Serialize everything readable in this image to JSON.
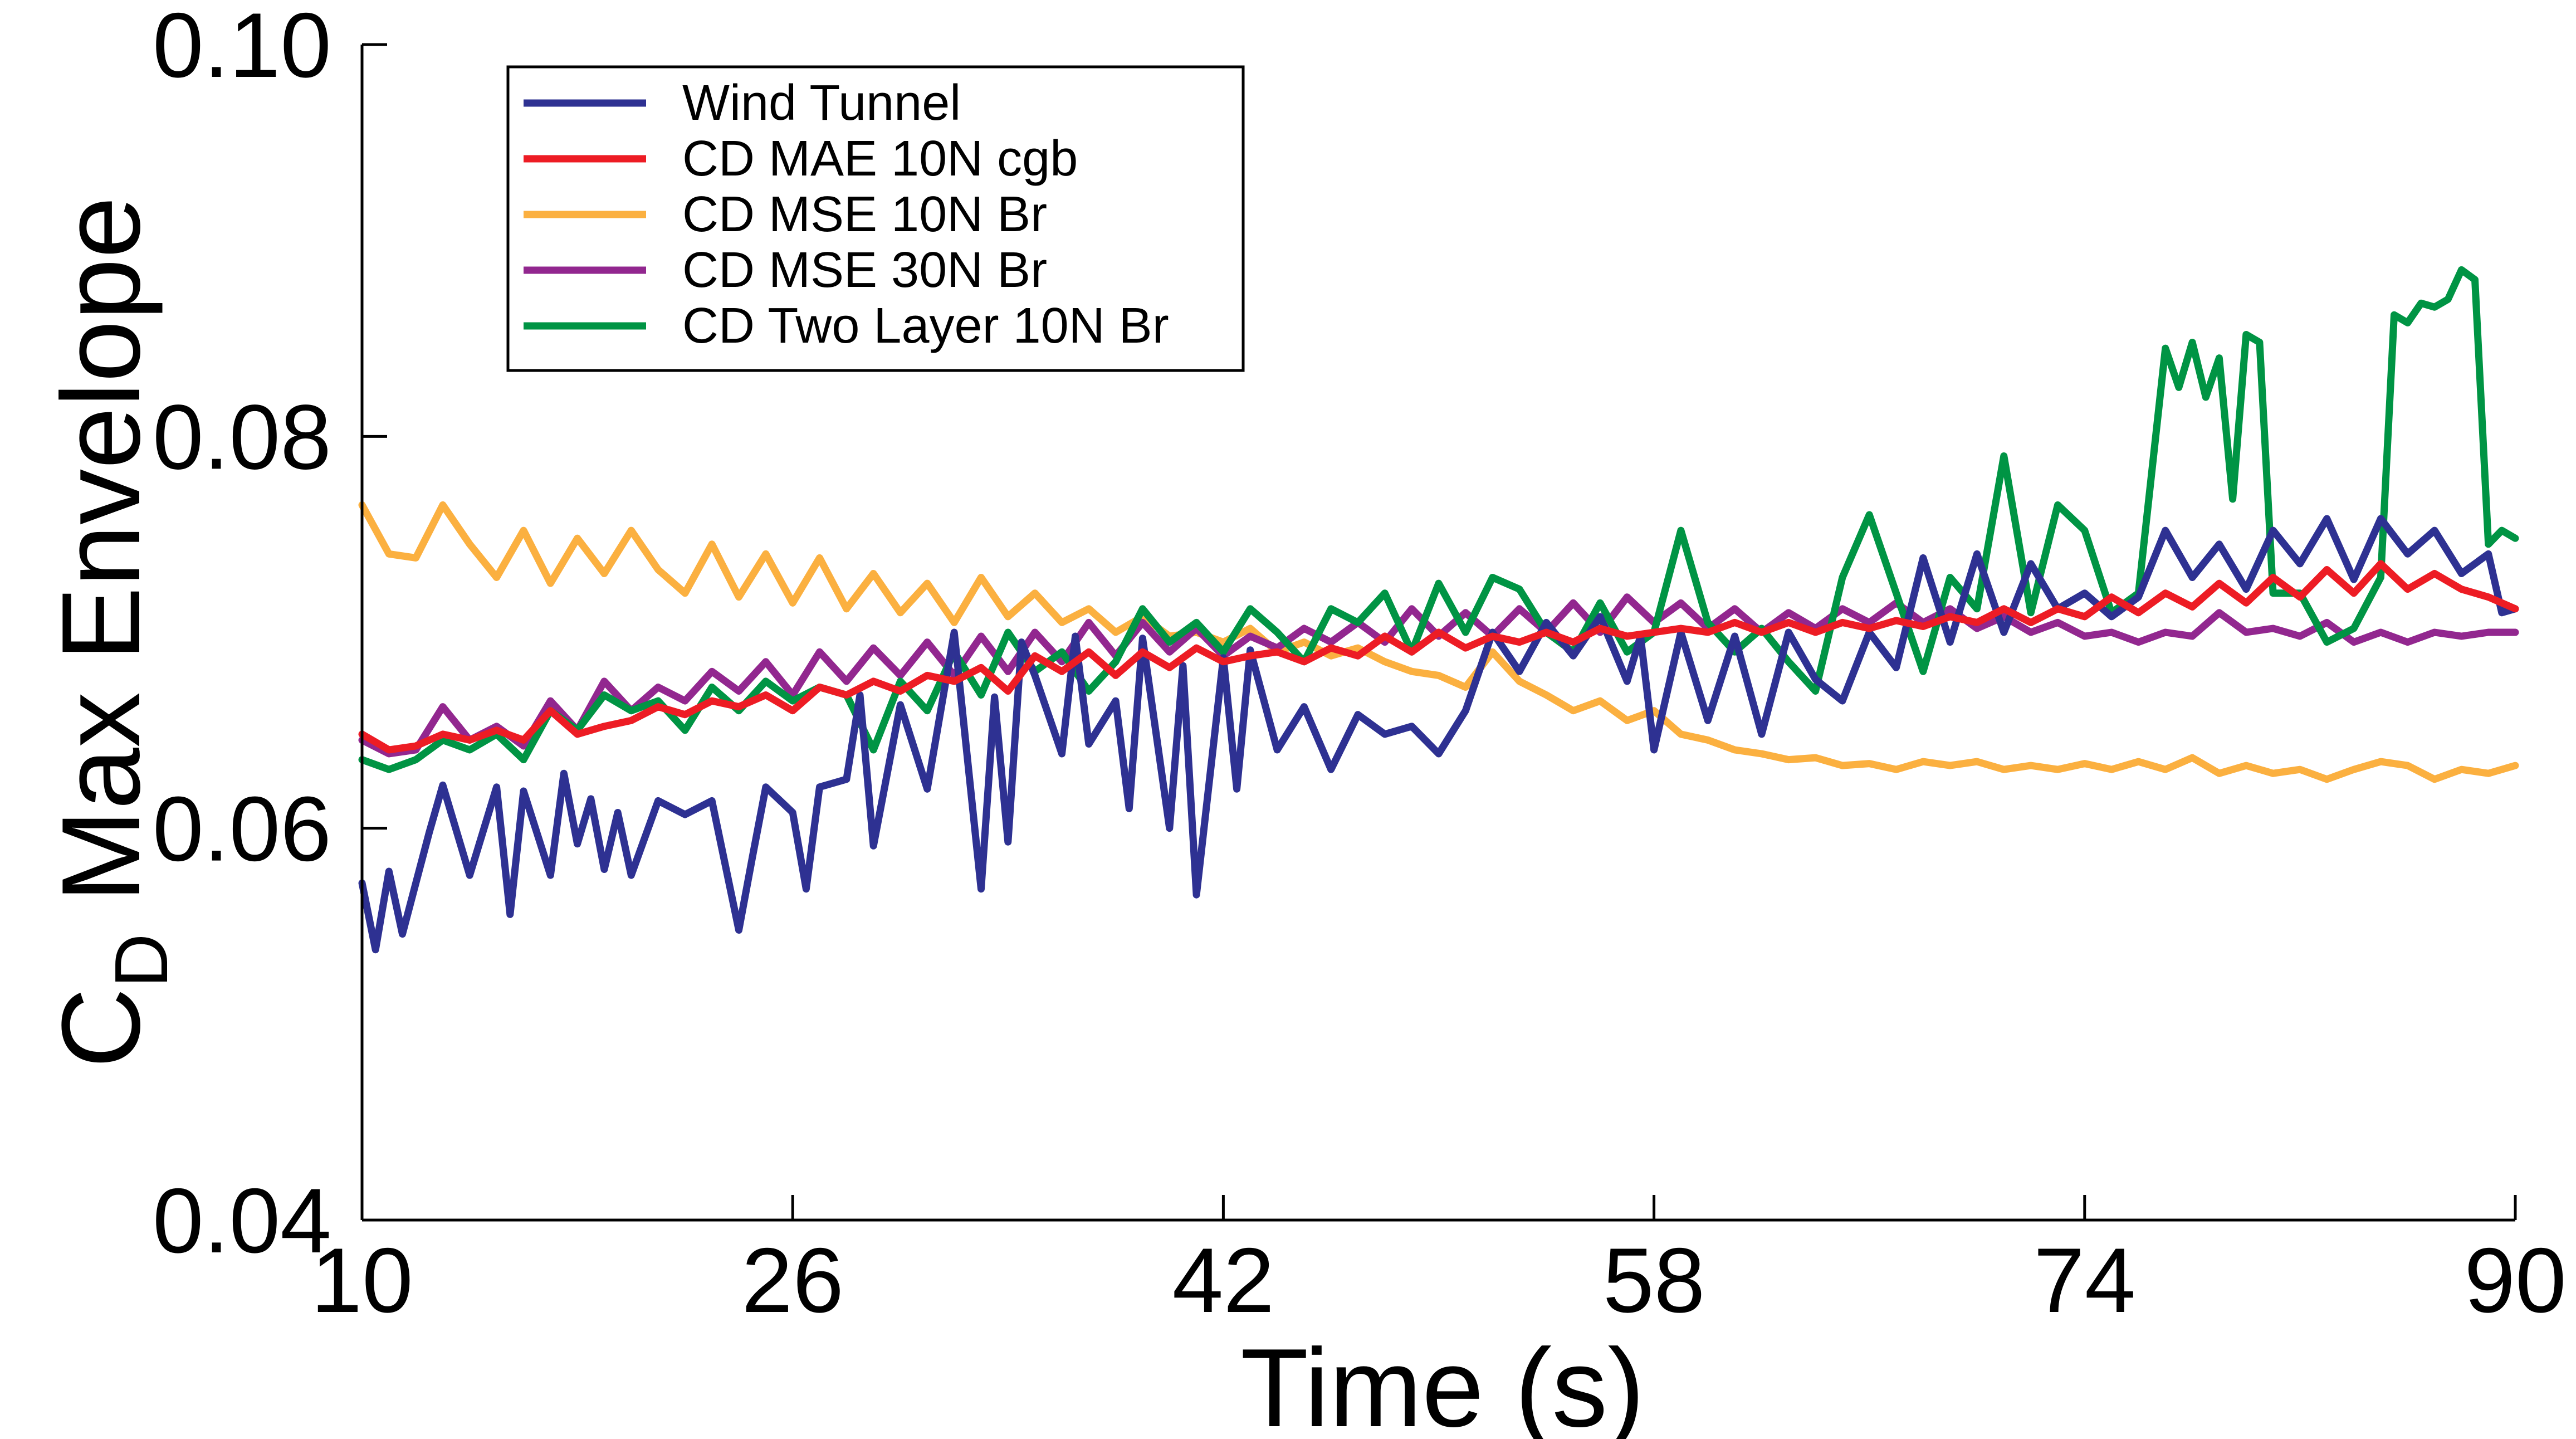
{
  "chart_data": {
    "type": "line",
    "xlabel": "Time (s)",
    "ylabel_main": "C",
    "ylabel_sub": "D",
    "ylabel_rest": " Max Envelope",
    "xlim": [
      10,
      90
    ],
    "ylim": [
      0.04,
      0.1
    ],
    "xticks": [
      10,
      26,
      42,
      58,
      74,
      90
    ],
    "xtick_labels": [
      "10",
      "26",
      "42",
      "58",
      "74",
      "90"
    ],
    "yticks": [
      0.04,
      0.06,
      0.08,
      0.1
    ],
    "ytick_labels": [
      "0.04",
      "0.06",
      "0.08",
      "0.10"
    ],
    "grid": false,
    "legend_position": "top-left",
    "series": [
      {
        "name": "Wind Tunnel",
        "color": "#2e3192",
        "x": [
          10,
          10.5,
          11,
          11.5,
          12,
          12.5,
          13,
          14,
          15,
          15.5,
          16,
          17,
          17.5,
          18,
          18.5,
          19,
          19.5,
          20,
          21,
          22,
          23,
          24,
          24.5,
          25,
          26,
          26.5,
          27,
          28,
          28.5,
          29,
          30,
          31,
          32,
          33,
          33.5,
          34,
          34.5,
          35,
          36,
          36.5,
          37,
          38,
          38.5,
          39,
          40,
          40.5,
          41,
          42,
          42.5,
          43,
          44,
          45,
          46,
          47,
          48,
          49,
          50,
          51,
          52,
          53,
          54,
          55,
          56,
          57,
          57.5,
          58,
          59,
          60,
          61,
          62,
          63,
          64,
          65,
          66,
          67,
          68,
          69,
          70,
          71,
          72,
          73,
          74,
          75,
          76,
          77,
          78,
          79,
          80,
          81,
          82,
          83,
          84,
          85,
          86,
          87,
          88,
          89,
          89.5,
          90
        ],
        "values": [
          0.0572,
          0.0538,
          0.0578,
          0.0546,
          0.0572,
          0.0598,
          0.0622,
          0.0576,
          0.0621,
          0.0556,
          0.0619,
          0.0576,
          0.0628,
          0.0592,
          0.0615,
          0.0579,
          0.0608,
          0.0576,
          0.0614,
          0.0607,
          0.0614,
          0.0548,
          0.0585,
          0.0621,
          0.0608,
          0.0569,
          0.0621,
          0.0625,
          0.0668,
          0.0591,
          0.0663,
          0.062,
          0.07,
          0.0569,
          0.0667,
          0.0593,
          0.0695,
          0.0678,
          0.0638,
          0.0698,
          0.0643,
          0.0665,
          0.061,
          0.0697,
          0.06,
          0.0683,
          0.0566,
          0.0687,
          0.062,
          0.0691,
          0.064,
          0.0662,
          0.063,
          0.0658,
          0.0648,
          0.0652,
          0.0638,
          0.066,
          0.07,
          0.068,
          0.0705,
          0.0688,
          0.0708,
          0.0675,
          0.0698,
          0.064,
          0.07,
          0.0655,
          0.0698,
          0.0648,
          0.07,
          0.0676,
          0.0665,
          0.07,
          0.0682,
          0.0738,
          0.0695,
          0.074,
          0.07,
          0.0735,
          0.0712,
          0.072,
          0.0708,
          0.0718,
          0.0752,
          0.0728,
          0.0745,
          0.0722,
          0.0752,
          0.0735,
          0.0758,
          0.0727,
          0.0758,
          0.074,
          0.0752,
          0.073,
          0.074,
          0.071,
          0.0712
        ]
      },
      {
        "name": "CD MAE 10N cgb",
        "color": "#ed1c24",
        "x": [
          10,
          11,
          12,
          13,
          14,
          15,
          16,
          17,
          18,
          19,
          20,
          21,
          22,
          23,
          24,
          25,
          26,
          27,
          28,
          29,
          30,
          31,
          32,
          33,
          34,
          35,
          36,
          37,
          38,
          39,
          40,
          41,
          42,
          43,
          44,
          45,
          46,
          47,
          48,
          49,
          50,
          51,
          52,
          53,
          54,
          55,
          56,
          57,
          58,
          59,
          60,
          61,
          62,
          63,
          64,
          65,
          66,
          67,
          68,
          69,
          70,
          71,
          72,
          73,
          74,
          75,
          76,
          77,
          78,
          79,
          80,
          81,
          82,
          83,
          84,
          85,
          86,
          87,
          88,
          89,
          90
        ],
        "values": [
          0.0648,
          0.064,
          0.0642,
          0.0648,
          0.0645,
          0.065,
          0.0645,
          0.066,
          0.0648,
          0.0652,
          0.0655,
          0.0662,
          0.0658,
          0.0665,
          0.0662,
          0.0668,
          0.066,
          0.0672,
          0.0668,
          0.0675,
          0.067,
          0.0678,
          0.0675,
          0.0682,
          0.067,
          0.0688,
          0.068,
          0.069,
          0.0678,
          0.069,
          0.0682,
          0.0692,
          0.0685,
          0.0688,
          0.069,
          0.0685,
          0.0692,
          0.0688,
          0.0698,
          0.069,
          0.07,
          0.0692,
          0.0698,
          0.0695,
          0.07,
          0.0695,
          0.0702,
          0.0698,
          0.07,
          0.0702,
          0.07,
          0.0705,
          0.07,
          0.0705,
          0.07,
          0.0705,
          0.0702,
          0.0706,
          0.0703,
          0.0708,
          0.0705,
          0.0712,
          0.0705,
          0.0712,
          0.0708,
          0.0718,
          0.071,
          0.072,
          0.0713,
          0.0725,
          0.0715,
          0.0728,
          0.0718,
          0.0732,
          0.072,
          0.0735,
          0.0722,
          0.073,
          0.0722,
          0.0718,
          0.0712
        ]
      },
      {
        "name": "CD MSE 10N Br",
        "color": "#fbb040",
        "x": [
          10,
          11,
          12,
          13,
          14,
          15,
          16,
          17,
          18,
          19,
          20,
          21,
          22,
          23,
          24,
          25,
          26,
          27,
          28,
          29,
          30,
          31,
          32,
          33,
          34,
          35,
          36,
          37,
          38,
          39,
          40,
          41,
          42,
          43,
          44,
          45,
          46,
          47,
          48,
          49,
          50,
          51,
          52,
          53,
          54,
          55,
          56,
          57,
          58,
          59,
          60,
          61,
          62,
          63,
          64,
          65,
          66,
          67,
          68,
          69,
          70,
          71,
          72,
          73,
          74,
          75,
          76,
          77,
          78,
          79,
          80,
          81,
          82,
          83,
          84,
          85,
          86,
          87,
          88,
          89,
          90
        ],
        "values": [
          0.0765,
          0.074,
          0.0738,
          0.0765,
          0.0745,
          0.0728,
          0.0752,
          0.0725,
          0.0748,
          0.073,
          0.0752,
          0.0732,
          0.072,
          0.0745,
          0.0718,
          0.074,
          0.0715,
          0.0738,
          0.0712,
          0.073,
          0.071,
          0.0725,
          0.0705,
          0.0728,
          0.0708,
          0.072,
          0.0705,
          0.0712,
          0.07,
          0.0708,
          0.0698,
          0.07,
          0.0695,
          0.0702,
          0.069,
          0.0695,
          0.0688,
          0.0692,
          0.0685,
          0.068,
          0.0678,
          0.0672,
          0.069,
          0.0675,
          0.0668,
          0.066,
          0.0665,
          0.0655,
          0.066,
          0.0648,
          0.0645,
          0.064,
          0.0638,
          0.0635,
          0.0636,
          0.0632,
          0.0633,
          0.063,
          0.0634,
          0.0632,
          0.0634,
          0.063,
          0.0632,
          0.063,
          0.0633,
          0.063,
          0.0634,
          0.063,
          0.0636,
          0.0628,
          0.0632,
          0.0628,
          0.063,
          0.0625,
          0.063,
          0.0634,
          0.0632,
          0.0625,
          0.063,
          0.0628,
          0.0632
        ]
      },
      {
        "name": "CD MSE 30N Br",
        "color": "#92278f",
        "x": [
          10,
          11,
          12,
          13,
          14,
          15,
          16,
          17,
          18,
          19,
          20,
          21,
          22,
          23,
          24,
          25,
          26,
          27,
          28,
          29,
          30,
          31,
          32,
          33,
          34,
          35,
          36,
          37,
          38,
          39,
          40,
          41,
          42,
          43,
          44,
          45,
          46,
          47,
          48,
          49,
          50,
          51,
          52,
          53,
          54,
          55,
          56,
          57,
          58,
          59,
          60,
          61,
          62,
          63,
          64,
          65,
          66,
          67,
          68,
          69,
          70,
          71,
          72,
          73,
          74,
          75,
          76,
          77,
          78,
          79,
          80,
          81,
          82,
          83,
          84,
          85,
          86,
          87,
          88,
          89,
          90
        ],
        "values": [
          0.0645,
          0.0638,
          0.064,
          0.0662,
          0.0645,
          0.0652,
          0.0642,
          0.0665,
          0.065,
          0.0675,
          0.066,
          0.0672,
          0.0665,
          0.068,
          0.067,
          0.0685,
          0.0668,
          0.069,
          0.0675,
          0.0692,
          0.0678,
          0.0695,
          0.0678,
          0.0698,
          0.068,
          0.07,
          0.0685,
          0.0705,
          0.0688,
          0.0705,
          0.069,
          0.0702,
          0.0688,
          0.0698,
          0.0692,
          0.0702,
          0.0695,
          0.0705,
          0.0695,
          0.0712,
          0.0698,
          0.071,
          0.0698,
          0.0712,
          0.07,
          0.0715,
          0.07,
          0.0718,
          0.0705,
          0.0715,
          0.0702,
          0.0712,
          0.07,
          0.071,
          0.0702,
          0.0712,
          0.0705,
          0.0715,
          0.0705,
          0.0712,
          0.0702,
          0.0708,
          0.07,
          0.0705,
          0.0698,
          0.07,
          0.0695,
          0.07,
          0.0698,
          0.071,
          0.07,
          0.0702,
          0.0698,
          0.0705,
          0.0695,
          0.07,
          0.0695,
          0.07,
          0.0698,
          0.07,
          0.07
        ]
      },
      {
        "name": "CD Two Layer 10N Br",
        "color": "#009444",
        "x": [
          10,
          11,
          12,
          13,
          14,
          15,
          16,
          17,
          18,
          19,
          20,
          21,
          22,
          23,
          24,
          25,
          26,
          27,
          28,
          29,
          30,
          31,
          32,
          33,
          34,
          35,
          36,
          37,
          38,
          39,
          40,
          41,
          42,
          43,
          44,
          45,
          46,
          47,
          48,
          49,
          50,
          51,
          52,
          53,
          54,
          55,
          56,
          57,
          58,
          59,
          60,
          61,
          62,
          63,
          64,
          65,
          66,
          67,
          68,
          69,
          70,
          71,
          72,
          73,
          74,
          75,
          76,
          77,
          77.5,
          78,
          78.5,
          79,
          79.5,
          80,
          80.5,
          81,
          82,
          83,
          84,
          85,
          85.5,
          86,
          86.5,
          87,
          87.5,
          88,
          88.5,
          89,
          89.5,
          90
        ],
        "values": [
          0.0635,
          0.063,
          0.0635,
          0.0645,
          0.064,
          0.0648,
          0.0635,
          0.066,
          0.065,
          0.0668,
          0.066,
          0.0665,
          0.065,
          0.0672,
          0.066,
          0.0675,
          0.0665,
          0.0672,
          0.0668,
          0.064,
          0.0675,
          0.066,
          0.069,
          0.0668,
          0.07,
          0.068,
          0.069,
          0.067,
          0.0685,
          0.0712,
          0.0695,
          0.0705,
          0.069,
          0.0712,
          0.07,
          0.0685,
          0.0712,
          0.0705,
          0.072,
          0.069,
          0.0725,
          0.07,
          0.0728,
          0.0722,
          0.07,
          0.069,
          0.0715,
          0.069,
          0.07,
          0.0752,
          0.0705,
          0.069,
          0.0702,
          0.0685,
          0.067,
          0.0728,
          0.076,
          0.072,
          0.068,
          0.0728,
          0.0712,
          0.079,
          0.071,
          0.0765,
          0.0752,
          0.071,
          0.072,
          0.0845,
          0.0825,
          0.0848,
          0.082,
          0.084,
          0.0768,
          0.0852,
          0.0848,
          0.072,
          0.072,
          0.0695,
          0.0702,
          0.0728,
          0.0862,
          0.0858,
          0.0868,
          0.0866,
          0.087,
          0.0885,
          0.088,
          0.0745,
          0.0752,
          0.0748
        ]
      }
    ]
  }
}
